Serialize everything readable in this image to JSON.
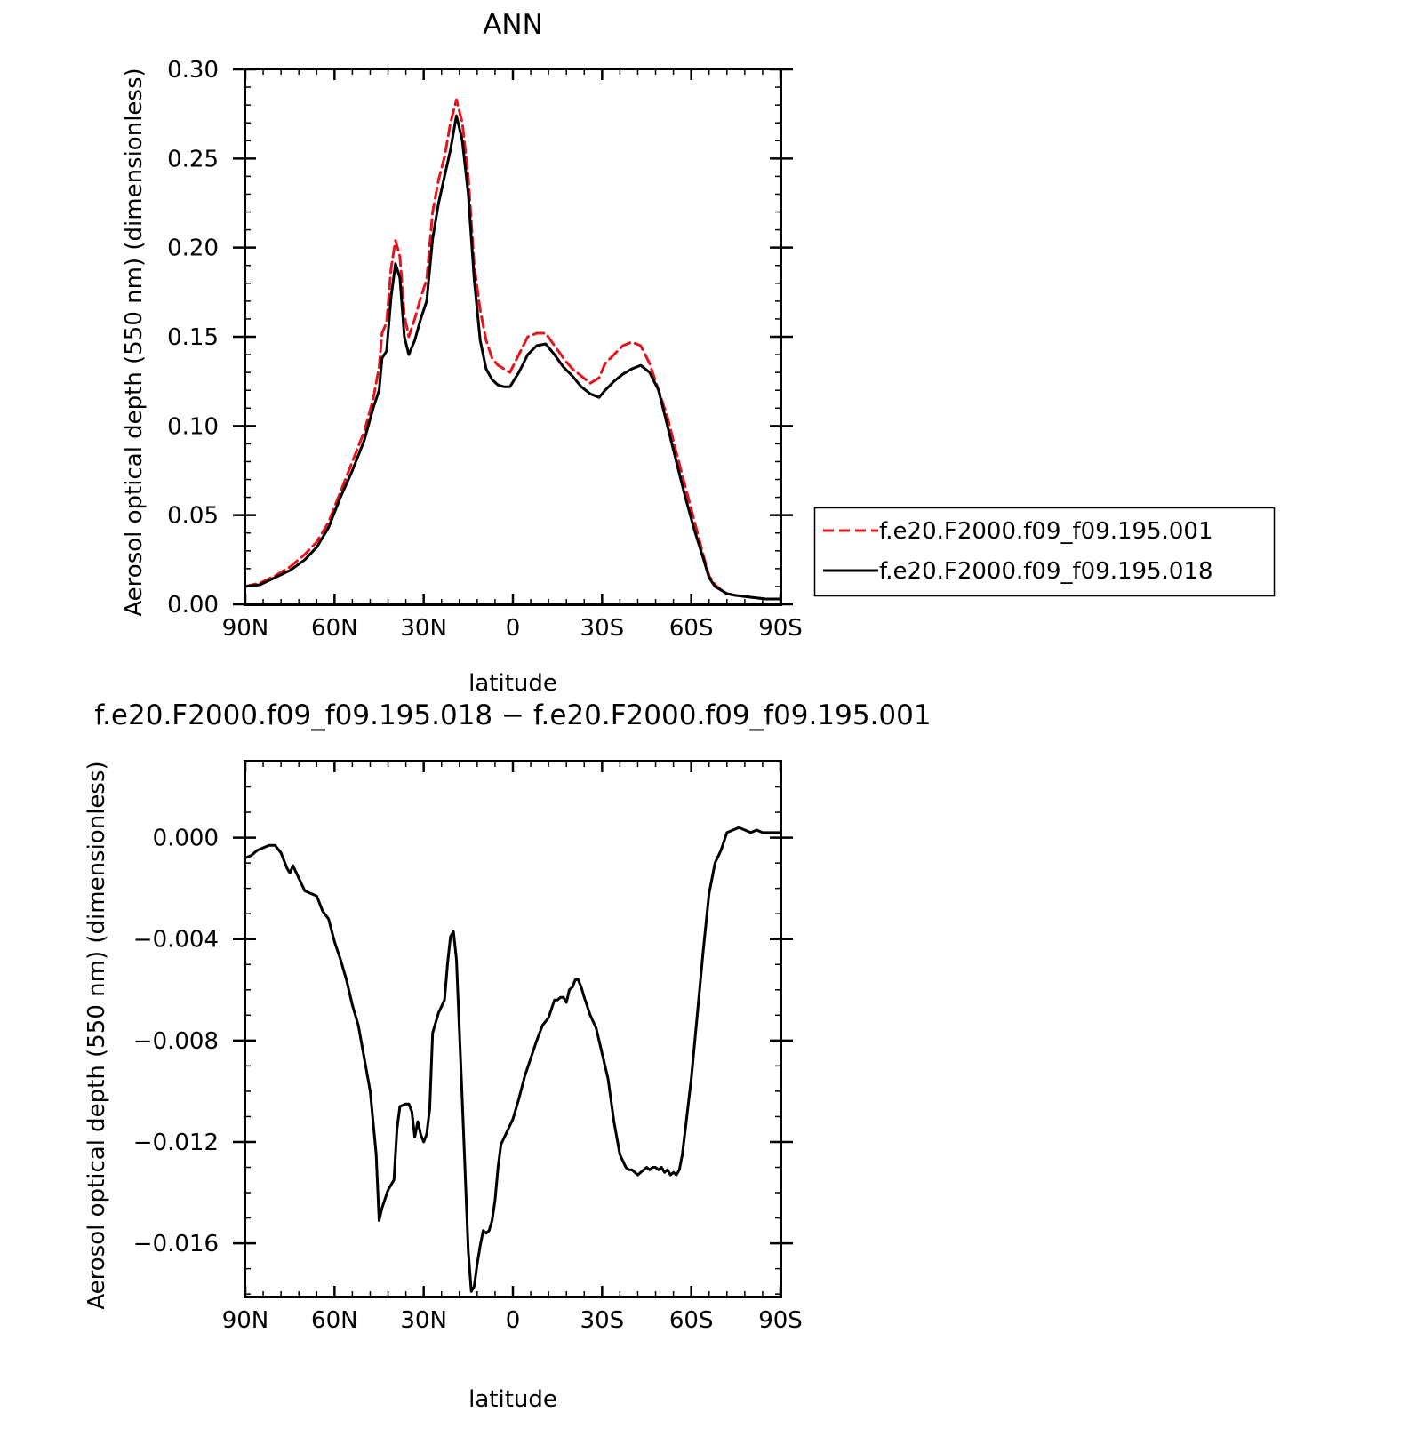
{
  "chart_data": [
    {
      "type": "line",
      "title": "ANN",
      "xlabel": "latitude",
      "ylabel": "Aerosol optical depth (550 nm) (dimensionless)",
      "xlim": [
        90,
        -90
      ],
      "ylim": [
        0,
        0.3
      ],
      "x_ticks": [
        90,
        60,
        30,
        0,
        -30,
        -60,
        -90
      ],
      "x_tick_labels": [
        "90N",
        "60N",
        "30N",
        "0",
        "30S",
        "60S",
        "90S"
      ],
      "y_ticks": [
        0,
        0.05,
        0.1,
        0.15,
        0.2,
        0.25,
        0.3
      ],
      "y_tick_labels": [
        "0.00",
        "0.05",
        "0.10",
        "0.15",
        "0.20",
        "0.25",
        "0.30"
      ],
      "grid": false,
      "legend_position": "right",
      "series": [
        {
          "name": "f.e20.F2000.f09_f09.195.001",
          "color": "#e8141c",
          "dash": "dashed",
          "x": [
            90,
            85,
            80,
            75,
            70,
            66,
            62,
            58,
            54,
            50,
            47,
            45,
            44,
            42.5,
            41,
            39.5,
            38,
            36.5,
            35,
            33,
            31,
            29,
            27,
            25,
            23,
            21,
            19,
            17,
            15,
            13,
            11,
            9,
            7,
            5,
            3,
            1,
            -2,
            -5,
            -8,
            -11,
            -14,
            -17,
            -20,
            -23,
            -26,
            -29,
            -31,
            -34,
            -37,
            -40,
            -43,
            -46,
            -49,
            -52,
            -55,
            -58,
            -61,
            -64,
            -66,
            -68,
            -70,
            -72,
            -75,
            -80,
            -85,
            -90
          ],
          "y": [
            0.01,
            0.012,
            0.016,
            0.021,
            0.028,
            0.035,
            0.046,
            0.063,
            0.08,
            0.097,
            0.115,
            0.133,
            0.152,
            0.158,
            0.188,
            0.204,
            0.195,
            0.162,
            0.15,
            0.16,
            0.172,
            0.182,
            0.22,
            0.238,
            0.251,
            0.27,
            0.283,
            0.27,
            0.24,
            0.19,
            0.165,
            0.148,
            0.138,
            0.134,
            0.132,
            0.13,
            0.14,
            0.15,
            0.152,
            0.152,
            0.145,
            0.138,
            0.132,
            0.128,
            0.124,
            0.127,
            0.135,
            0.14,
            0.145,
            0.147,
            0.145,
            0.135,
            0.12,
            0.105,
            0.085,
            0.066,
            0.047,
            0.028,
            0.016,
            0.011,
            0.008,
            0.006,
            0.005,
            0.004,
            0.003,
            0.003
          ]
        },
        {
          "name": "f.e20.F2000.f09_f09.195.018",
          "color": "#000000",
          "dash": "solid",
          "x": [
            90,
            85,
            80,
            75,
            70,
            66,
            62,
            58,
            54,
            50,
            47,
            45,
            44,
            42.5,
            41,
            39.5,
            38,
            36.5,
            35,
            33,
            31,
            29,
            27,
            25,
            23,
            21,
            19,
            17,
            15,
            13,
            11,
            9,
            7,
            5,
            3,
            1,
            -2,
            -5,
            -8,
            -11,
            -14,
            -17,
            -20,
            -23,
            -26,
            -29,
            -31,
            -34,
            -37,
            -40,
            -43,
            -46,
            -49,
            -52,
            -55,
            -58,
            -61,
            -64,
            -66,
            -68,
            -70,
            -72,
            -75,
            -80,
            -85,
            -90
          ],
          "y": [
            0.01,
            0.011,
            0.015,
            0.019,
            0.025,
            0.032,
            0.043,
            0.06,
            0.075,
            0.092,
            0.11,
            0.12,
            0.138,
            0.142,
            0.172,
            0.191,
            0.183,
            0.15,
            0.14,
            0.148,
            0.16,
            0.17,
            0.205,
            0.225,
            0.24,
            0.255,
            0.274,
            0.26,
            0.23,
            0.182,
            0.148,
            0.132,
            0.126,
            0.123,
            0.122,
            0.122,
            0.13,
            0.14,
            0.145,
            0.146,
            0.14,
            0.133,
            0.128,
            0.122,
            0.118,
            0.116,
            0.12,
            0.125,
            0.129,
            0.132,
            0.134,
            0.13,
            0.12,
            0.1,
            0.08,
            0.06,
            0.042,
            0.026,
            0.015,
            0.01,
            0.008,
            0.006,
            0.005,
            0.004,
            0.003,
            0.003
          ]
        }
      ]
    },
    {
      "type": "line",
      "title": "f.e20.F2000.f09_f09.195.018 − f.e20.F2000.f09_f09.195.001",
      "xlabel": "latitude",
      "ylabel": "Aerosol optical depth (550 nm) (dimensionless)",
      "xlim": [
        90,
        -90
      ],
      "ylim": [
        -0.0181,
        0.003
      ],
      "x_ticks": [
        90,
        60,
        30,
        0,
        -30,
        -60,
        -90
      ],
      "x_tick_labels": [
        "90N",
        "60N",
        "30N",
        "0",
        "30S",
        "60S",
        "90S"
      ],
      "y_ticks": [
        0,
        -0.004,
        -0.008,
        -0.012,
        -0.016
      ],
      "y_tick_labels": [
        "0.000",
        "−0.004",
        "−0.008",
        "−0.012",
        "−0.016"
      ],
      "grid": false,
      "series": [
        {
          "color": "#000000",
          "dash": "solid",
          "x": [
            90,
            88,
            86,
            84,
            82,
            80,
            78,
            76,
            75,
            74,
            72,
            70,
            68,
            66,
            64,
            62,
            60,
            58,
            56,
            54,
            52,
            50,
            48,
            46,
            45,
            44,
            42,
            40,
            39,
            38,
            36,
            35,
            34,
            33,
            32,
            31,
            30,
            29,
            28,
            27,
            25,
            23,
            22,
            21,
            20,
            19,
            17,
            15,
            14,
            13,
            12,
            11,
            10,
            9,
            8,
            7,
            6,
            5,
            4,
            2,
            0,
            -2,
            -4,
            -6,
            -8,
            -10,
            -12,
            -14,
            -15,
            -16,
            -17,
            -18,
            -19,
            -20,
            -21,
            -22,
            -23,
            -24,
            -26,
            -28,
            -30,
            -32,
            -34,
            -36,
            -38,
            -39,
            -40,
            -42,
            -43,
            -44,
            -45,
            -46,
            -47,
            -48,
            -49,
            -50,
            -51,
            -52,
            -53,
            -54,
            -55,
            -56,
            -57,
            -58,
            -60,
            -62,
            -64,
            -66,
            -68,
            -70,
            -72,
            -74,
            -76,
            -78,
            -80,
            -82,
            -84,
            -86,
            -88,
            -90
          ],
          "y": [
            -0.0008,
            -0.0007,
            -0.0005,
            -0.0004,
            -0.0003,
            -0.0003,
            -0.0006,
            -0.0012,
            -0.0014,
            -0.0011,
            -0.0016,
            -0.0021,
            -0.0022,
            -0.0023,
            -0.0029,
            -0.0032,
            -0.0041,
            -0.0048,
            -0.0056,
            -0.0066,
            -0.0074,
            -0.0087,
            -0.01,
            -0.0125,
            -0.0151,
            -0.0146,
            -0.0139,
            -0.0135,
            -0.0115,
            -0.0106,
            -0.0105,
            -0.0105,
            -0.0108,
            -0.0118,
            -0.0112,
            -0.0117,
            -0.012,
            -0.0117,
            -0.0107,
            -0.0077,
            -0.0069,
            -0.0064,
            -0.005,
            -0.0039,
            -0.0037,
            -0.0048,
            -0.0104,
            -0.0163,
            -0.0179,
            -0.0177,
            -0.0168,
            -0.0161,
            -0.0155,
            -0.0156,
            -0.0155,
            -0.0151,
            -0.0143,
            -0.013,
            -0.0121,
            -0.0116,
            -0.0111,
            -0.0103,
            -0.0094,
            -0.0087,
            -0.008,
            -0.0074,
            -0.0071,
            -0.0064,
            -0.0064,
            -0.0063,
            -0.0063,
            -0.0065,
            -0.006,
            -0.0059,
            -0.0056,
            -0.0056,
            -0.0059,
            -0.0063,
            -0.007,
            -0.0075,
            -0.0085,
            -0.0095,
            -0.0112,
            -0.0125,
            -0.013,
            -0.0131,
            -0.0131,
            -0.0133,
            -0.0132,
            -0.0131,
            -0.013,
            -0.0131,
            -0.013,
            -0.013,
            -0.0131,
            -0.013,
            -0.0132,
            -0.0131,
            -0.0133,
            -0.0132,
            -0.0133,
            -0.0131,
            -0.0125,
            -0.0115,
            -0.0095,
            -0.007,
            -0.0045,
            -0.0022,
            -0.001,
            -0.0005,
            0.0002,
            0.0003,
            0.0004,
            0.0003,
            0.0002,
            0.0003,
            0.0002,
            0.0002,
            0.0002,
            0.0002
          ]
        }
      ]
    }
  ]
}
